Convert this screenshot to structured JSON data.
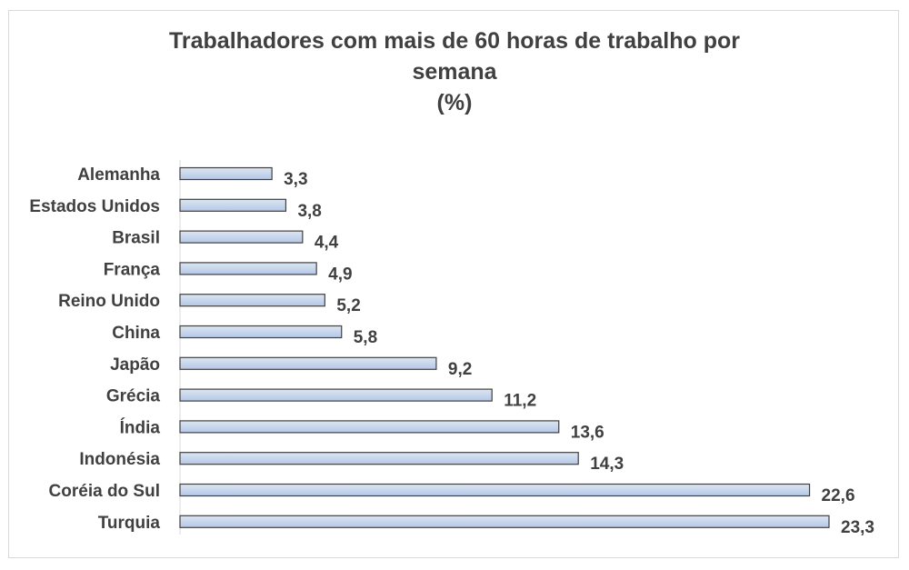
{
  "chart_data": {
    "type": "bar",
    "orientation": "horizontal",
    "title_lines": [
      "Trabalhadores com mais de 60 horas de trabalho por",
      "semana",
      "(%)"
    ],
    "categories": [
      "Alemanha",
      "Estados Unidos",
      "Brasil",
      "França",
      "Reino Unido",
      "China",
      "Japão",
      "Grécia",
      "Índia",
      "Indonésia",
      "Coréia do Sul",
      "Turquia"
    ],
    "values": [
      3.3,
      3.8,
      4.4,
      4.9,
      5.2,
      5.8,
      9.2,
      11.2,
      13.6,
      14.3,
      22.6,
      23.3
    ],
    "value_labels": [
      "3,3",
      "3,8",
      "4,4",
      "4,9",
      "5,2",
      "5,8",
      "9,2",
      "11,2",
      "13,6",
      "14,3",
      "22,6",
      "23,3"
    ],
    "xlim": [
      0,
      23.3
    ],
    "grid": false,
    "legend": "none",
    "colors": {
      "bar_fill_top": "#dce6f2",
      "bar_fill_bottom": "#b4c7e7",
      "bar_border": "#404040",
      "text": "#404040"
    }
  }
}
